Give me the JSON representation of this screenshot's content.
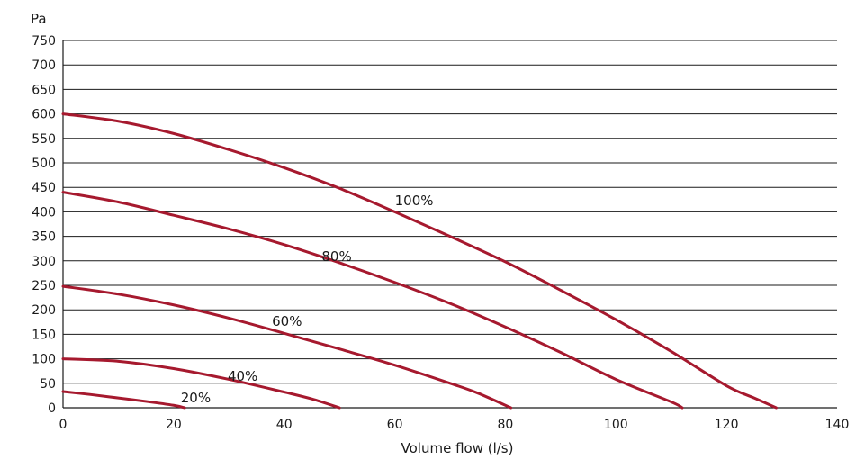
{
  "chart_data": {
    "type": "line",
    "title": "",
    "xlabel": "Volume flow (l/s)",
    "ylabel": "Pa",
    "xlim": [
      0,
      140
    ],
    "ylim": [
      0,
      750
    ],
    "x_ticks": [
      0,
      20,
      40,
      60,
      80,
      100,
      120,
      140
    ],
    "y_ticks": [
      0,
      50,
      100,
      150,
      200,
      250,
      300,
      350,
      400,
      450,
      500,
      550,
      600,
      650,
      700,
      750
    ],
    "grid": "horizontal",
    "legend": "none",
    "line_color": "#a6192e",
    "series": [
      {
        "name": "100%",
        "x": [
          0,
          10,
          20,
          30,
          40,
          50,
          60,
          70,
          80,
          90,
          100,
          110,
          120,
          125,
          129
        ],
        "y": [
          600,
          585,
          560,
          527,
          490,
          448,
          400,
          350,
          298,
          240,
          180,
          115,
          45,
          20,
          0
        ]
      },
      {
        "name": "80%",
        "x": [
          0,
          10,
          20,
          30,
          40,
          50,
          60,
          70,
          80,
          90,
          100,
          110,
          112
        ],
        "y": [
          440,
          420,
          393,
          365,
          333,
          296,
          256,
          213,
          165,
          113,
          58,
          12,
          0
        ]
      },
      {
        "name": "60%",
        "x": [
          0,
          10,
          20,
          30,
          40,
          50,
          60,
          70,
          75,
          81
        ],
        "y": [
          248,
          232,
          210,
          183,
          152,
          120,
          87,
          50,
          30,
          0
        ]
      },
      {
        "name": "40%",
        "x": [
          0,
          10,
          20,
          30,
          40,
          45,
          50
        ],
        "y": [
          100,
          95,
          80,
          58,
          32,
          18,
          0
        ]
      },
      {
        "name": "20%",
        "x": [
          0,
          5,
          10,
          15,
          20,
          22
        ],
        "y": [
          33,
          27,
          20,
          13,
          5,
          0
        ]
      }
    ]
  }
}
